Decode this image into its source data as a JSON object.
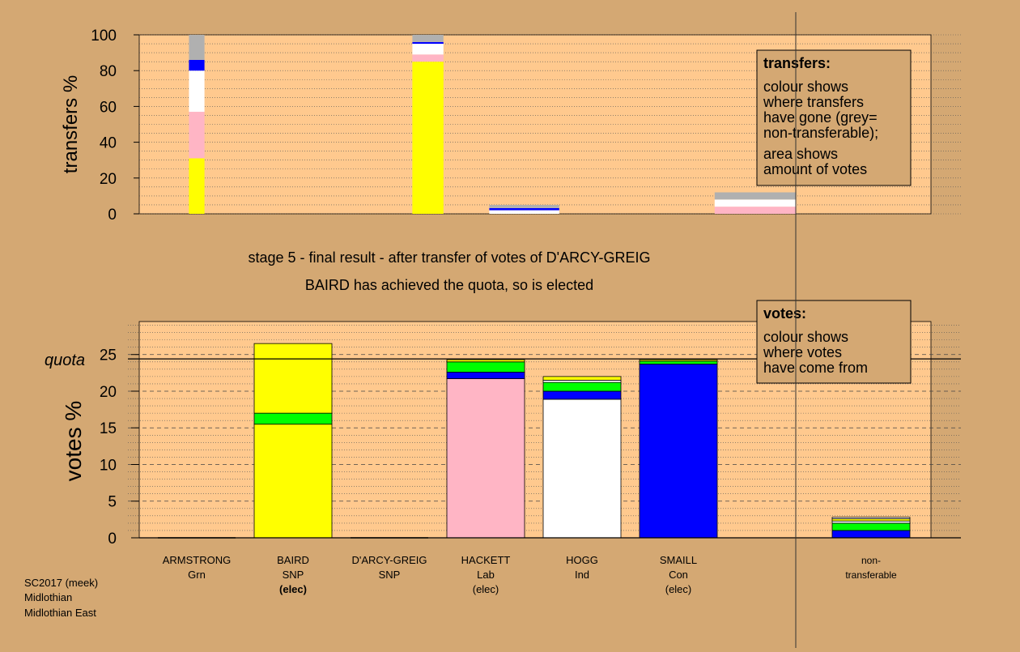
{
  "chart_data": [
    {
      "type": "bar",
      "name": "transfers",
      "ylabel": "transfers %",
      "ylim": [
        0,
        100
      ],
      "yticks": [
        0,
        20,
        40,
        60,
        80,
        100
      ],
      "grid": true,
      "bars": [
        {
          "slot": 0,
          "width": 0.2,
          "segments": [
            {
              "color": "yellow",
              "from": 0,
              "to": 31
            },
            {
              "color": "pink",
              "from": 31,
              "to": 57
            },
            {
              "color": "white",
              "from": 57,
              "to": 80
            },
            {
              "color": "blue",
              "from": 80,
              "to": 86
            },
            {
              "color": "grey",
              "from": 86,
              "to": 100
            }
          ]
        },
        {
          "slot": 2.4,
          "width": 0.4,
          "segments": [
            {
              "color": "yellow",
              "from": 0,
              "to": 85
            },
            {
              "color": "pink",
              "from": 85,
              "to": 89
            },
            {
              "color": "white",
              "from": 89,
              "to": 95
            },
            {
              "color": "blue",
              "from": 95,
              "to": 96
            },
            {
              "color": "grey",
              "from": 96,
              "to": 100
            }
          ]
        },
        {
          "slot": 3.4,
          "width": 0.9,
          "segments": [
            {
              "color": "white",
              "from": 0,
              "to": 2
            },
            {
              "color": "blue",
              "from": 2,
              "to": 3.2
            },
            {
              "color": "grey",
              "from": 3.2,
              "to": 5
            }
          ]
        },
        {
          "slot": 5.8,
          "width": 1.05,
          "segments": [
            {
              "color": "pink",
              "from": 0,
              "to": 4
            },
            {
              "color": "white",
              "from": 4,
              "to": 8
            },
            {
              "color": "grey",
              "from": 8,
              "to": 12
            }
          ]
        }
      ],
      "legend": {
        "title": "transfers:",
        "lines": [
          "colour shows",
          "where transfers",
          "have gone (grey=",
          "non-transferable);",
          "area shows",
          "amount of votes"
        ]
      }
    },
    {
      "type": "bar",
      "name": "votes",
      "ylabel": "votes %",
      "ylim": [
        0,
        29.5
      ],
      "yticks": [
        0,
        5,
        10,
        15,
        20,
        25
      ],
      "quota": 24.4,
      "quota_label": "quota",
      "grid": true,
      "categories": [
        "ARMSTRONG",
        "BAIRD",
        "D'ARCY-GREIG",
        "HACKETT",
        "HOGG",
        "SMAILL",
        "non-"
      ],
      "category_parties": [
        "Grn",
        "SNP",
        "SNP",
        "Lab",
        "Ind",
        "Con",
        "transferable"
      ],
      "category_status": [
        "",
        "(elec)",
        "",
        "(elec)",
        "",
        "(elec)",
        ""
      ],
      "bars": [
        {
          "slot": 0,
          "segments": []
        },
        {
          "slot": 1,
          "segments": [
            {
              "color": "yellow",
              "from": 0,
              "to": 15.5
            },
            {
              "color": "green",
              "from": 15.5,
              "to": 17
            },
            {
              "color": "yellow",
              "from": 17,
              "to": 26.5
            }
          ]
        },
        {
          "slot": 2,
          "segments": []
        },
        {
          "slot": 3,
          "segments": [
            {
              "color": "pink",
              "from": 0,
              "to": 21.7
            },
            {
              "color": "blue",
              "from": 21.7,
              "to": 22.6
            },
            {
              "color": "green",
              "from": 22.6,
              "to": 24
            },
            {
              "color": "yellow",
              "from": 24,
              "to": 24.3
            }
          ]
        },
        {
          "slot": 4,
          "segments": [
            {
              "color": "white",
              "from": 0,
              "to": 18.9
            },
            {
              "color": "blue",
              "from": 18.9,
              "to": 20
            },
            {
              "color": "green",
              "from": 20,
              "to": 21.2
            },
            {
              "color": "white",
              "from": 21.2,
              "to": 21.5
            },
            {
              "color": "yellow",
              "from": 21.5,
              "to": 22
            }
          ]
        },
        {
          "slot": 5,
          "segments": [
            {
              "color": "blue",
              "from": 0,
              "to": 23.7
            },
            {
              "color": "green",
              "from": 23.7,
              "to": 24.1
            },
            {
              "color": "yellow",
              "from": 24.1,
              "to": 24.3
            }
          ]
        },
        {
          "slot": 7,
          "segments": [
            {
              "color": "blue",
              "from": 0,
              "to": 1
            },
            {
              "color": "green",
              "from": 1,
              "to": 2
            },
            {
              "color": "white",
              "from": 2,
              "to": 2.3
            },
            {
              "color": "yellow",
              "from": 2.3,
              "to": 2.6
            },
            {
              "color": "white",
              "from": 2.6,
              "to": 2.8
            }
          ]
        }
      ],
      "legend": {
        "title": "votes:",
        "lines": [
          "colour shows",
          "where votes",
          "have come from"
        ]
      }
    }
  ],
  "stage_title": "stage 5 - final result - after transfer of votes of D'ARCY-GREIG",
  "stage_subtitle": "BAIRD has achieved the quota, so is elected",
  "footer": [
    "SC2017 (meek)",
    "Midlothian",
    "Midlothian East"
  ],
  "colors": {
    "background": "#D4A873",
    "plot_background": "#FFC98E",
    "yellow": "#FFFF00",
    "pink": "#FFB5C5",
    "white": "#FFFFFF",
    "blue": "#0000FF",
    "green": "#00FF00",
    "grey": "#B0B0B0",
    "legend_fill": "#D4A873"
  }
}
